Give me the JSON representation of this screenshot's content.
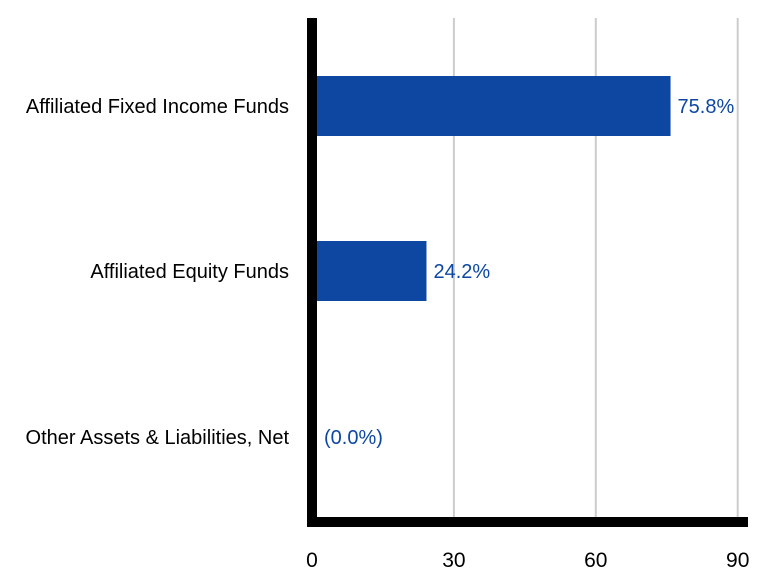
{
  "chart_data": {
    "type": "bar",
    "orientation": "horizontal",
    "categories": [
      "Affiliated Fixed Income Funds",
      "Affiliated Equity Funds",
      "Other Assets & Liabilities, Net"
    ],
    "values": [
      75.8,
      24.2,
      0.0
    ],
    "data_labels": [
      "75.8%",
      "24.2%",
      "(0.0%)"
    ],
    "xlim": [
      0,
      90
    ],
    "xticks": [
      0,
      30,
      60,
      90
    ],
    "grid": "vertical",
    "bar_color": "#0d47a1",
    "label_color": "#0d47a1",
    "axis_color": "#000000",
    "grid_color": "#cccccc"
  }
}
